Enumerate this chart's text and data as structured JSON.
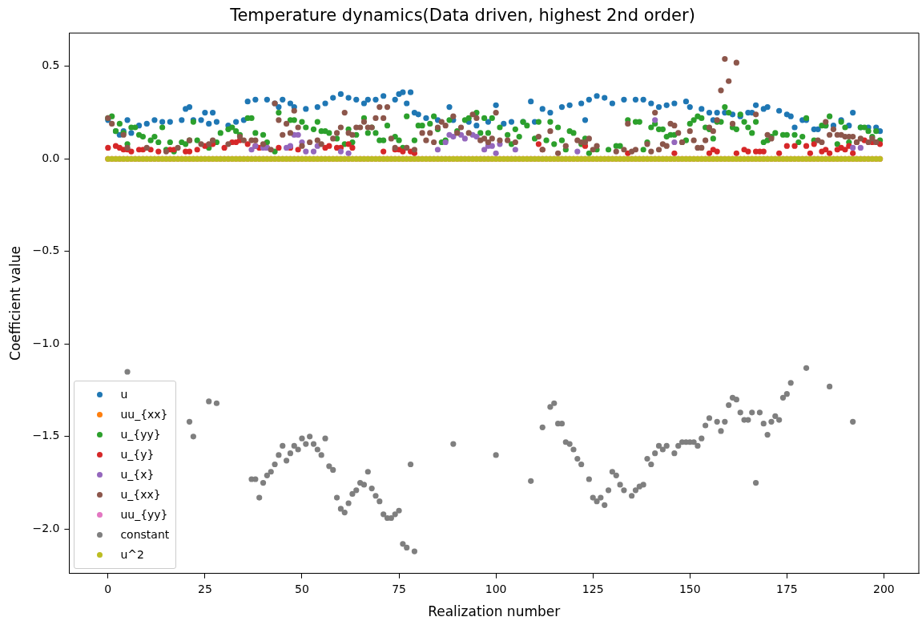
{
  "chart_data": {
    "type": "scatter",
    "title": "Temperature dynamics(Data driven, highest 2nd order)",
    "xlabel": "Realization number",
    "ylabel": "Coefficient value",
    "xlim": [
      -10,
      209
    ],
    "ylim": [
      -2.24,
      0.68
    ],
    "xticks": [
      0,
      25,
      50,
      75,
      100,
      125,
      150,
      175,
      200
    ],
    "yticks": [
      {
        "value": -2,
        "label": "−2.0"
      },
      {
        "value": -1.5,
        "label": "−1.5"
      },
      {
        "value": -1,
        "label": "−1.0"
      },
      {
        "value": -0.5,
        "label": "−0.5"
      },
      {
        "value": 0,
        "label": "0.0"
      },
      {
        "value": 0.5,
        "label": "0.5"
      }
    ],
    "grid": false,
    "legend": "bottom left",
    "marker": "circle",
    "x": [
      0,
      1,
      2,
      3,
      4,
      5,
      6,
      7,
      8,
      9,
      10,
      11,
      12,
      13,
      14,
      15,
      16,
      17,
      18,
      19,
      20,
      21,
      22,
      23,
      24,
      25,
      26,
      27,
      28,
      29,
      30,
      31,
      32,
      33,
      34,
      35,
      36,
      37,
      38,
      39,
      40,
      41,
      42,
      43,
      44,
      45,
      46,
      47,
      48,
      49,
      50,
      51,
      52,
      53,
      54,
      55,
      56,
      57,
      58,
      59,
      60,
      61,
      62,
      63,
      64,
      65,
      66,
      67,
      68,
      69,
      70,
      71,
      72,
      73,
      74,
      75,
      76,
      77,
      78,
      79,
      80,
      81,
      82,
      83,
      84,
      85,
      86,
      87,
      88,
      89,
      90,
      91,
      92,
      93,
      94,
      95,
      96,
      97,
      98,
      99,
      100,
      101,
      102,
      103,
      104,
      105,
      106,
      107,
      108,
      109,
      110,
      111,
      112,
      113,
      114,
      115,
      116,
      117,
      118,
      119,
      120,
      121,
      122,
      123,
      124,
      125,
      126,
      127,
      128,
      129,
      130,
      131,
      132,
      133,
      134,
      135,
      136,
      137,
      138,
      139,
      140,
      141,
      142,
      143,
      144,
      145,
      146,
      147,
      148,
      149,
      150,
      151,
      152,
      153,
      154,
      155,
      156,
      157,
      158,
      159,
      160,
      161,
      162,
      163,
      164,
      165,
      166,
      167,
      168,
      169,
      170,
      171,
      172,
      173,
      174,
      175,
      176,
      177,
      178,
      179,
      180,
      181,
      182,
      183,
      184,
      185,
      186,
      187,
      188,
      189,
      190,
      191,
      192,
      193,
      194,
      195,
      196,
      197,
      198,
      199
    ],
    "series": [
      {
        "name": "u",
        "color": "#1f77b4",
        "x": [
          0,
          2,
          3,
          4,
          5,
          6,
          8,
          10,
          12,
          14,
          16,
          19,
          20,
          21,
          22,
          24,
          25,
          26,
          27,
          28,
          31,
          33,
          35,
          36,
          38,
          41,
          43,
          44,
          45,
          47,
          48,
          51,
          54,
          56,
          58,
          60,
          62,
          64,
          66,
          67,
          69,
          71,
          74,
          75,
          76,
          77,
          78,
          79,
          80,
          82,
          85,
          88,
          89,
          93,
          95,
          98,
          100,
          102,
          104,
          107,
          109,
          110,
          112,
          114,
          117,
          119,
          122,
          123,
          124,
          126,
          128,
          130,
          133,
          136,
          138,
          140,
          142,
          144,
          146,
          149,
          150,
          153,
          155,
          156,
          157,
          159,
          161,
          163,
          165,
          166,
          167,
          169,
          170,
          173,
          175,
          176,
          177,
          179,
          180,
          182,
          183,
          185,
          187,
          189,
          191,
          192,
          194,
          196,
          198,
          199
        ],
        "values": [
          0.21,
          0.15,
          0.13,
          0.15,
          0.21,
          0.14,
          0.18,
          0.19,
          0.21,
          0.2,
          0.2,
          0.21,
          0.27,
          0.28,
          0.21,
          0.21,
          0.25,
          0.19,
          0.25,
          0.2,
          0.18,
          0.2,
          0.21,
          0.31,
          0.32,
          0.32,
          0.3,
          0.28,
          0.32,
          0.3,
          0.28,
          0.27,
          0.28,
          0.3,
          0.33,
          0.35,
          0.33,
          0.32,
          0.3,
          0.32,
          0.32,
          0.34,
          0.32,
          0.35,
          0.36,
          0.3,
          0.36,
          0.25,
          0.24,
          0.22,
          0.21,
          0.28,
          0.21,
          0.2,
          0.18,
          0.2,
          0.29,
          0.19,
          0.2,
          0.2,
          0.31,
          0.2,
          0.27,
          0.25,
          0.28,
          0.29,
          0.3,
          0.21,
          0.32,
          0.34,
          0.33,
          0.3,
          0.32,
          0.32,
          0.32,
          0.3,
          0.28,
          0.29,
          0.3,
          0.31,
          0.28,
          0.27,
          0.25,
          0.21,
          0.25,
          0.25,
          0.24,
          0.23,
          0.25,
          0.25,
          0.29,
          0.27,
          0.28,
          0.26,
          0.24,
          0.23,
          0.17,
          0.21,
          0.21,
          0.16,
          0.16,
          0.18,
          0.18,
          0.21,
          0.18,
          0.25,
          0.17,
          0.17,
          0.17,
          0.15
        ]
      },
      {
        "name": "uu_{xx}",
        "color": "#ff7f0e",
        "values": [
          0,
          0,
          0,
          0,
          0,
          0,
          0,
          0,
          0,
          0,
          0,
          0,
          0,
          0,
          0,
          0,
          0,
          0,
          0,
          0,
          0,
          0,
          0,
          0,
          0,
          0,
          0,
          0,
          0,
          0,
          0,
          0,
          0,
          0,
          0,
          0,
          0,
          0,
          0,
          0,
          0,
          0,
          0,
          0,
          0,
          0,
          0,
          0,
          0,
          0,
          0,
          0,
          0,
          0,
          0,
          0,
          0,
          0,
          0,
          0,
          0,
          0,
          0,
          0,
          0,
          0,
          0,
          0,
          0,
          0,
          0,
          0,
          0,
          0,
          0,
          0,
          0,
          0,
          0,
          0,
          0,
          0,
          0,
          0,
          0,
          0,
          0,
          0,
          0,
          0,
          0,
          0,
          0,
          0,
          0,
          0,
          0,
          0,
          0,
          0,
          0,
          0,
          0,
          0,
          0,
          0,
          0,
          0,
          0,
          0,
          0,
          0,
          0,
          0,
          0,
          0,
          0,
          0,
          0,
          0,
          0,
          0,
          0,
          0,
          0,
          0,
          0,
          0,
          0,
          0,
          0,
          0,
          0,
          0,
          0,
          0,
          0,
          0,
          0,
          0,
          0,
          0,
          0,
          0,
          0,
          0,
          0,
          0,
          0,
          0,
          0,
          0,
          0,
          0,
          0,
          0,
          0,
          0,
          0,
          0,
          0,
          0,
          0,
          0,
          0,
          0,
          0,
          0,
          0,
          0,
          0,
          0,
          0,
          0,
          0,
          0,
          0,
          0,
          0,
          0,
          0,
          0,
          0,
          0,
          0,
          0,
          0,
          0,
          0,
          0,
          0,
          0,
          0,
          0,
          0,
          0,
          0,
          0,
          0,
          0
        ]
      },
      {
        "name": "u_{yy}",
        "color": "#2ca02c",
        "x": [
          0,
          1,
          2,
          3,
          4,
          5,
          6,
          7,
          8,
          9,
          11,
          12,
          13,
          14,
          15,
          16,
          17,
          19,
          20,
          21,
          22,
          23,
          26,
          28,
          29,
          31,
          32,
          33,
          34,
          36,
          37,
          38,
          40,
          41,
          43,
          44,
          47,
          48,
          50,
          51,
          53,
          54,
          55,
          56,
          57,
          59,
          61,
          62,
          63,
          64,
          66,
          67,
          68,
          69,
          70,
          71,
          72,
          74,
          75,
          76,
          77,
          79,
          80,
          81,
          83,
          84,
          85,
          86,
          87,
          88,
          90,
          92,
          93,
          95,
          96,
          97,
          98,
          99,
          101,
          103,
          104,
          105,
          106,
          107,
          108,
          110,
          111,
          113,
          114,
          115,
          116,
          117,
          118,
          119,
          120,
          122,
          123,
          124,
          126,
          129,
          131,
          132,
          134,
          136,
          137,
          138,
          139,
          140,
          141,
          142,
          143,
          144,
          145,
          146,
          148,
          149,
          150,
          151,
          152,
          153,
          154,
          155,
          156,
          157,
          158,
          159,
          160,
          161,
          162,
          163,
          164,
          165,
          166,
          167,
          169,
          170,
          171,
          172,
          174,
          175,
          177,
          178,
          179,
          180,
          182,
          184,
          185,
          186,
          188,
          189,
          190,
          191,
          194,
          195,
          196,
          197,
          198,
          199
        ],
        "values": [
          0.22,
          0.23,
          0.15,
          0.19,
          0.14,
          0.08,
          0.17,
          0.17,
          0.13,
          0.12,
          0.1,
          0.12,
          0.09,
          0.17,
          0.05,
          0.09,
          0.04,
          0.09,
          0.08,
          0.1,
          0.2,
          0.1,
          0.06,
          0.09,
          0.14,
          0.16,
          0.17,
          0.15,
          0.13,
          0.22,
          0.22,
          0.14,
          0.13,
          0.09,
          0.04,
          0.25,
          0.21,
          0.21,
          0.2,
          0.17,
          0.16,
          0.2,
          0.15,
          0.15,
          0.14,
          0.11,
          0.08,
          0.16,
          0.09,
          0.13,
          0.22,
          0.14,
          0.17,
          0.14,
          0.1,
          0.1,
          0.18,
          0.12,
          0.1,
          0.06,
          0.23,
          0.1,
          0.18,
          0.18,
          0.19,
          0.23,
          0.16,
          0.09,
          0.1,
          0.21,
          0.15,
          0.21,
          0.22,
          0.25,
          0.14,
          0.22,
          0.14,
          0.22,
          0.17,
          0.13,
          0.08,
          0.16,
          0.12,
          0.2,
          0.18,
          0.11,
          0.2,
          0.1,
          0.2,
          0.08,
          0.17,
          0.1,
          0.05,
          0.15,
          0.14,
          0.08,
          0.11,
          0.03,
          0.05,
          0.05,
          0.07,
          0.07,
          0.21,
          0.2,
          0.2,
          0.05,
          0.09,
          0.17,
          0.19,
          0.16,
          0.16,
          0.12,
          0.13,
          0.13,
          0.09,
          0.1,
          0.19,
          0.21,
          0.23,
          0.22,
          0.17,
          0.16,
          0.11,
          0.2,
          0.2,
          0.28,
          0.25,
          0.17,
          0.16,
          0.24,
          0.2,
          0.17,
          0.14,
          0.2,
          0.09,
          0.1,
          0.12,
          0.14,
          0.13,
          0.13,
          0.13,
          0.09,
          0.12,
          0.22,
          0.1,
          0.18,
          0.18,
          0.23,
          0.08,
          0.2,
          0.17,
          0.09,
          0.17,
          0.17,
          0.15,
          0.12,
          0.15,
          0.1
        ]
      },
      {
        "name": "u_{y}",
        "color": "#d62728",
        "x": [
          0,
          2,
          3,
          4,
          5,
          6,
          8,
          9,
          11,
          13,
          16,
          17,
          20,
          21,
          23,
          25,
          27,
          30,
          32,
          33,
          34,
          36,
          38,
          39,
          41,
          44,
          47,
          49,
          56,
          57,
          59,
          60,
          62,
          63,
          71,
          74,
          75,
          76,
          78,
          79,
          111,
          112,
          123,
          134,
          146,
          155,
          156,
          157,
          162,
          164,
          165,
          167,
          168,
          169,
          173,
          175,
          177,
          180,
          181,
          182,
          184,
          185,
          186,
          188,
          189,
          190,
          191,
          192,
          193,
          195,
          197,
          198,
          199
        ],
        "values": [
          0.06,
          0.07,
          0.06,
          0.05,
          0.05,
          0.04,
          0.05,
          0.05,
          0.05,
          0.04,
          0.05,
          0.05,
          0.04,
          0.04,
          0.05,
          0.07,
          0.08,
          0.06,
          0.09,
          0.09,
          0.1,
          0.08,
          0.07,
          0.06,
          0.06,
          0.06,
          0.06,
          0.05,
          0.06,
          0.07,
          0.06,
          0.06,
          0.08,
          0.06,
          0.04,
          0.05,
          0.05,
          0.04,
          0.04,
          0.03,
          0.08,
          0.05,
          0.07,
          0.03,
          0.03,
          0.03,
          0.05,
          0.04,
          0.03,
          0.05,
          0.04,
          0.04,
          0.04,
          0.04,
          0.03,
          0.07,
          0.07,
          0.07,
          0.03,
          0.08,
          0.04,
          0.05,
          0.03,
          0.05,
          0.06,
          0.05,
          0.07,
          0.03,
          0.09,
          0.1,
          0.09,
          0.09,
          0.08
        ]
      },
      {
        "name": "u_{x}",
        "color": "#9467bd",
        "x": [
          37,
          38,
          40,
          41,
          46,
          47,
          48,
          49,
          50,
          51,
          53,
          54,
          60,
          62,
          85,
          87,
          88,
          89,
          91,
          92,
          93,
          94,
          95,
          97,
          98,
          99,
          100,
          101,
          105,
          121,
          141,
          142,
          146,
          192,
          193,
          194
        ],
        "values": [
          0.05,
          0.07,
          0.06,
          0.06,
          0.06,
          0.07,
          0.13,
          0.13,
          0.09,
          0.04,
          0.04,
          0.07,
          0.04,
          0.03,
          0.05,
          0.09,
          0.13,
          0.12,
          0.13,
          0.11,
          null,
          0.13,
          0.12,
          0.05,
          0.07,
          0.07,
          0.03,
          0.08,
          0.05,
          0.04,
          0.21,
          null,
          0.09,
          0.06,
          null,
          0.06
        ]
      },
      {
        "name": "u_{xx}",
        "color": "#8c564b",
        "x": [
          0,
          1,
          4,
          5,
          10,
          15,
          18,
          21,
          24,
          26,
          27,
          31,
          34,
          35,
          37,
          38,
          40,
          42,
          43,
          44,
          45,
          46,
          47,
          48,
          49,
          50,
          52,
          54,
          55,
          58,
          59,
          60,
          61,
          62,
          63,
          64,
          65,
          66,
          67,
          68,
          69,
          70,
          71,
          72,
          73,
          74,
          77,
          79,
          81,
          82,
          83,
          84,
          85,
          86,
          87,
          89,
          90,
          91,
          93,
          94,
          95,
          96,
          97,
          98,
          99,
          100,
          101,
          103,
          105,
          111,
          112,
          114,
          116,
          118,
          121,
          122,
          123,
          124,
          125,
          126,
          131,
          133,
          134,
          135,
          136,
          139,
          140,
          141,
          142,
          143,
          144,
          145,
          146,
          147,
          148,
          150,
          151,
          152,
          153,
          154,
          155,
          156,
          157,
          158,
          159,
          160,
          161,
          162,
          167,
          170,
          171,
          183,
          184,
          185,
          186,
          187,
          188,
          189,
          190,
          191,
          192,
          193,
          194,
          196,
          197,
          198
        ],
        "values": [
          0.22,
          0.19,
          0.13,
          0.06,
          0.06,
          0.04,
          0.06,
          0.1,
          0.08,
          0.08,
          0.1,
          0.08,
          0.12,
          0.1,
          0.1,
          0.1,
          0.08,
          0.05,
          0.3,
          0.21,
          0.13,
          0.19,
          0.14,
          0.26,
          0.17,
          0.07,
          0.09,
          0.1,
          0.08,
          0.11,
          0.14,
          0.17,
          0.25,
          0.14,
          0.13,
          0.17,
          0.17,
          0.2,
          0.17,
          0.17,
          0.22,
          0.28,
          0.22,
          0.28,
          0.11,
          0.06,
          0.06,
          0.05,
          0.14,
          0.1,
          0.14,
          0.09,
          0.17,
          0.2,
          0.18,
          0.23,
          0.14,
          0.17,
          0.14,
          0.24,
          0.22,
          0.1,
          0.11,
          0.09,
          0.11,
          0.25,
          0.1,
          0.1,
          0.09,
          0.12,
          0.05,
          0.15,
          0.03,
          0.07,
          0.1,
          0.09,
          0.09,
          0.11,
          0.05,
          0.07,
          0.04,
          0.05,
          0.19,
          0.04,
          0.05,
          0.08,
          0.04,
          0.25,
          0.05,
          0.08,
          0.07,
          0.19,
          0.18,
          0.14,
          0.09,
          0.15,
          0.1,
          0.06,
          0.06,
          0.1,
          0.17,
          0.15,
          0.21,
          0.37,
          0.54,
          0.42,
          0.19,
          0.52,
          0.24,
          0.13,
          0.11,
          0.1,
          0.09,
          0.2,
          0.13,
          0.16,
          0.13,
          0.13,
          0.12,
          0.12,
          0.12,
          0.09,
          0.11,
          0.09,
          0.11,
          0.09
        ]
      },
      {
        "name": "uu_{yy}",
        "color": "#e377c2",
        "values": [
          0,
          0,
          0,
          0,
          0,
          0,
          0,
          0,
          0,
          0,
          0,
          0,
          0,
          0,
          0,
          0,
          0,
          0,
          0,
          0,
          0,
          0,
          0,
          0,
          0,
          0,
          0,
          0,
          0,
          0,
          0,
          0,
          0,
          0,
          0,
          0,
          0,
          0,
          0,
          0,
          0,
          0,
          0,
          0,
          0,
          0,
          0,
          0,
          0,
          0,
          0,
          0,
          0,
          0,
          0,
          0,
          0,
          0,
          0,
          0,
          0,
          0,
          0,
          0,
          0,
          0,
          0,
          0,
          0,
          0,
          0,
          0,
          0,
          0,
          0,
          0,
          0,
          0,
          0,
          0,
          0,
          0,
          0,
          0,
          0,
          0,
          0,
          0,
          0,
          0,
          0,
          0,
          0,
          0,
          0,
          0,
          0,
          0,
          0,
          0,
          0,
          0,
          0,
          0,
          0,
          0,
          0,
          0,
          0,
          0,
          0,
          0,
          0,
          0,
          0,
          0,
          0,
          0,
          0,
          0,
          0,
          0,
          0,
          0,
          0,
          0,
          0,
          0,
          0,
          0,
          0,
          0,
          0,
          0,
          0,
          0,
          0,
          0,
          0,
          0,
          0,
          0,
          0,
          0,
          0,
          0,
          0,
          0,
          0,
          0,
          0,
          0,
          0,
          0,
          0,
          0,
          0,
          0,
          0,
          0,
          0,
          0,
          0,
          0,
          0,
          0,
          0,
          0,
          0,
          0,
          0,
          0,
          0,
          0,
          0,
          0,
          0,
          0,
          0,
          0,
          0,
          0,
          0,
          0,
          0,
          0,
          0,
          0,
          0,
          0,
          0,
          0,
          0,
          0,
          0,
          0,
          0,
          0,
          0,
          0
        ]
      },
      {
        "name": "constant",
        "color": "#7f7f7f",
        "x": [
          5,
          21,
          22,
          26,
          28,
          37,
          38,
          39,
          40,
          41,
          42,
          43,
          44,
          45,
          46,
          47,
          48,
          49,
          50,
          51,
          52,
          53,
          54,
          55,
          56,
          57,
          58,
          59,
          60,
          61,
          62,
          63,
          64,
          65,
          66,
          67,
          68,
          69,
          70,
          71,
          72,
          73,
          74,
          75,
          76,
          77,
          78,
          79,
          89,
          100,
          109,
          112,
          114,
          115,
          116,
          117,
          118,
          119,
          120,
          121,
          122,
          124,
          125,
          126,
          127,
          128,
          129,
          130,
          131,
          132,
          133,
          135,
          136,
          137,
          138,
          139,
          140,
          141,
          142,
          143,
          144,
          146,
          147,
          148,
          149,
          150,
          151,
          152,
          153,
          154,
          155,
          157,
          158,
          159,
          160,
          161,
          162,
          163,
          164,
          165,
          166,
          167,
          168,
          169,
          170,
          171,
          172,
          173,
          174,
          175,
          176,
          180,
          186,
          192
        ],
        "values": [
          -1.15,
          -1.42,
          -1.5,
          -1.31,
          -1.32,
          -1.73,
          -1.73,
          -1.83,
          -1.75,
          -1.71,
          -1.69,
          -1.65,
          -1.6,
          -1.55,
          -1.63,
          -1.59,
          -1.55,
          -1.57,
          -1.51,
          -1.54,
          -1.5,
          -1.54,
          -1.57,
          -1.6,
          -1.51,
          -1.66,
          -1.68,
          -1.83,
          -1.89,
          -1.91,
          -1.86,
          -1.81,
          -1.79,
          -1.75,
          -1.76,
          -1.69,
          -1.78,
          -1.82,
          -1.85,
          -1.92,
          -1.94,
          -1.94,
          -1.92,
          -1.9,
          -2.08,
          -2.1,
          -1.65,
          -2.12,
          -1.54,
          -1.6,
          -1.74,
          -1.45,
          -1.34,
          -1.32,
          -1.43,
          -1.43,
          -1.53,
          -1.54,
          -1.57,
          -1.62,
          -1.65,
          -1.73,
          -1.83,
          -1.85,
          -1.83,
          -1.87,
          -1.79,
          -1.69,
          -1.71,
          -1.76,
          -1.79,
          -1.82,
          -1.79,
          -1.77,
          -1.76,
          -1.62,
          -1.65,
          -1.59,
          -1.55,
          -1.57,
          -1.55,
          -1.59,
          -1.55,
          -1.53,
          -1.53,
          -1.53,
          -1.53,
          -1.55,
          -1.51,
          -1.44,
          -1.4,
          -1.42,
          -1.47,
          -1.42,
          -1.33,
          -1.29,
          -1.3,
          -1.37,
          -1.41,
          -1.41,
          -1.37,
          -1.75,
          -1.37,
          -1.43,
          -1.49,
          -1.42,
          -1.39,
          -1.41,
          -1.29,
          -1.27,
          -1.21,
          -1.13,
          -1.23,
          -1.42
        ]
      },
      {
        "name": "u^2",
        "color": "#bcbd22",
        "values": [
          0,
          0,
          0,
          0,
          0,
          0,
          0,
          0,
          0,
          0,
          0,
          0,
          0,
          0,
          0,
          0,
          0,
          0,
          0,
          0,
          0,
          0,
          0,
          0,
          0,
          0,
          0,
          0,
          0,
          0,
          0,
          0,
          0,
          0,
          0,
          0,
          0,
          0,
          0,
          0,
          0,
          0,
          0,
          0,
          0,
          0,
          0,
          0,
          0,
          0,
          0,
          0,
          0,
          0,
          0,
          0,
          0,
          0,
          0,
          0,
          0,
          0,
          0,
          0,
          0,
          0,
          0,
          0,
          0,
          0,
          0,
          0,
          0,
          0,
          0,
          0,
          0,
          0,
          0,
          0,
          0,
          0,
          0,
          0,
          0,
          0,
          0,
          0,
          0,
          0,
          0,
          0,
          0,
          0,
          0,
          0,
          0,
          0,
          0,
          0,
          0,
          0,
          0,
          0,
          0,
          0,
          0,
          0,
          0,
          0,
          0,
          0,
          0,
          0,
          0,
          0,
          0,
          0,
          0,
          0,
          0,
          0,
          0,
          0,
          0,
          0,
          0,
          0,
          0,
          0,
          0,
          0,
          0,
          0,
          0,
          0,
          0,
          0,
          0,
          0,
          0,
          0,
          0,
          0,
          0,
          0,
          0,
          0,
          0,
          0,
          0,
          0,
          0,
          0,
          0,
          0,
          0,
          0,
          0,
          0,
          0,
          0,
          0,
          0,
          0,
          0,
          0,
          0,
          0,
          0,
          0,
          0,
          0,
          0,
          0,
          0,
          0,
          0,
          0,
          0,
          0,
          0,
          0,
          0,
          0,
          0,
          0,
          0,
          0,
          0,
          0,
          0,
          0,
          0,
          0,
          0,
          0,
          0,
          0,
          0
        ]
      }
    ]
  }
}
